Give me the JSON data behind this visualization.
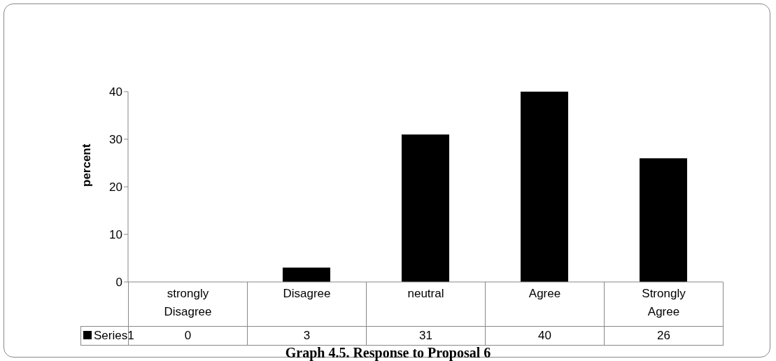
{
  "chart_data": {
    "type": "bar",
    "title": "Graph  4.5. Response to Proposal 6",
    "ylabel": "percent",
    "categories": [
      "strongly Disagree",
      "Disagree",
      "neutral",
      "Agree",
      "Strongly Agree"
    ],
    "series": [
      {
        "name": "Series1",
        "color": "#000000",
        "values": [
          0,
          3,
          31,
          40,
          26
        ]
      }
    ],
    "ylim": [
      0,
      40
    ],
    "yticks": [
      0,
      10,
      20,
      30,
      40
    ],
    "data_labels": true
  }
}
